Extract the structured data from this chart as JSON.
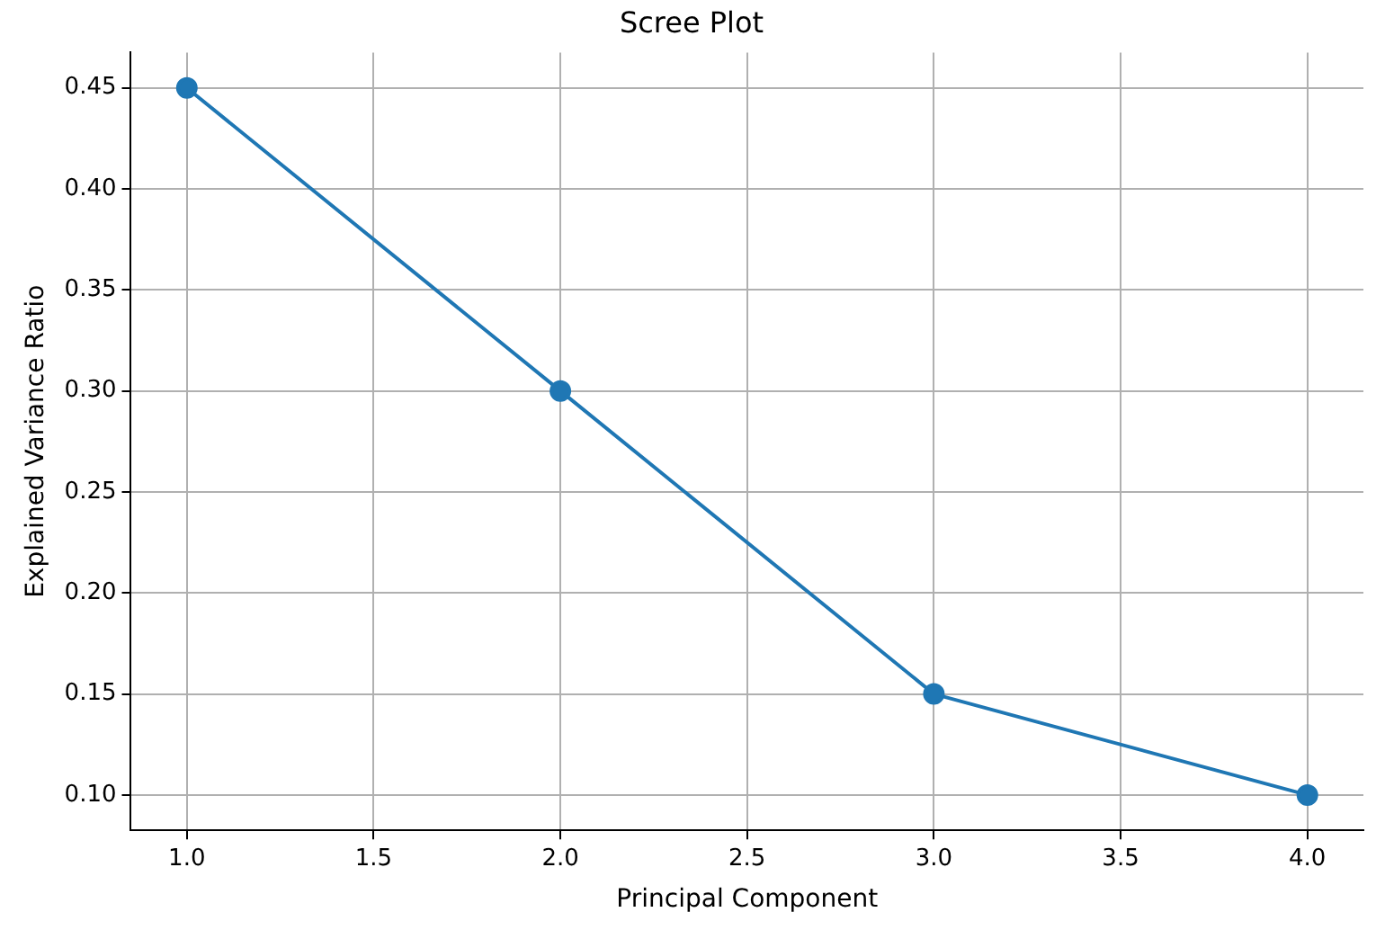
{
  "chart_data": {
    "type": "line",
    "title": "Scree Plot",
    "xlabel": "Principal Component",
    "ylabel": "Explained Variance Ratio",
    "x": [
      1,
      2,
      3,
      4
    ],
    "series": [
      {
        "color": "#1f77b4",
        "values": [
          0.45,
          0.3,
          0.15,
          0.1
        ]
      }
    ],
    "xlim": [
      0.85,
      4.15
    ],
    "xticks": [
      {
        "value": 1,
        "label": "1.0"
      },
      {
        "value": 1.5,
        "label": "1.5"
      },
      {
        "value": 2,
        "label": "2.0"
      },
      {
        "value": 2.5,
        "label": "2.5"
      },
      {
        "value": 3,
        "label": "3.0"
      },
      {
        "value": 3.5,
        "label": "3.5"
      },
      {
        "value": 4,
        "label": "4.0"
      }
    ],
    "ylim": [
      0.0825,
      0.4675
    ],
    "yticks": [
      {
        "value": 0.1,
        "label": "0.10"
      },
      {
        "value": 0.15,
        "label": "0.15"
      },
      {
        "value": 0.2,
        "label": "0.20"
      },
      {
        "value": 0.25,
        "label": "0.25"
      },
      {
        "value": 0.3,
        "label": "0.30"
      },
      {
        "value": 0.35,
        "label": "0.35"
      },
      {
        "value": 0.4,
        "label": "0.40"
      },
      {
        "value": 0.45,
        "label": "0.45"
      }
    ],
    "grid": true,
    "legend": false,
    "marker": "circle",
    "line_style": "solid"
  }
}
